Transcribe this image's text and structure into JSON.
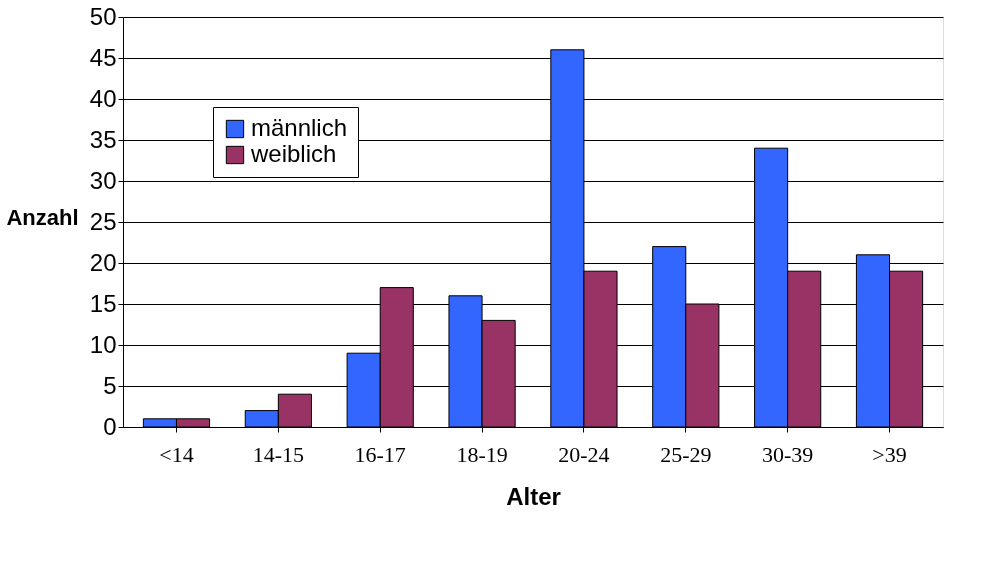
{
  "chart_data": {
    "type": "bar",
    "xlabel": "Alter",
    "ylabel": "Anzahl",
    "categories": [
      "<14",
      "14-15",
      "16-17",
      "18-19",
      "20-24",
      "25-29",
      "30-39",
      ">39"
    ],
    "series": [
      {
        "name": "männlich",
        "color": "#3366ff",
        "values": [
          1,
          2,
          9,
          16,
          46,
          22,
          34,
          21
        ]
      },
      {
        "name": "weiblich",
        "color": "#993366",
        "values": [
          1,
          4,
          17,
          13,
          19,
          15,
          19,
          19
        ]
      }
    ],
    "ylim": [
      0,
      50
    ],
    "yticks": [
      0,
      5,
      10,
      15,
      20,
      25,
      30,
      35,
      40,
      45,
      50
    ],
    "grid": "y",
    "legend": "top left"
  }
}
